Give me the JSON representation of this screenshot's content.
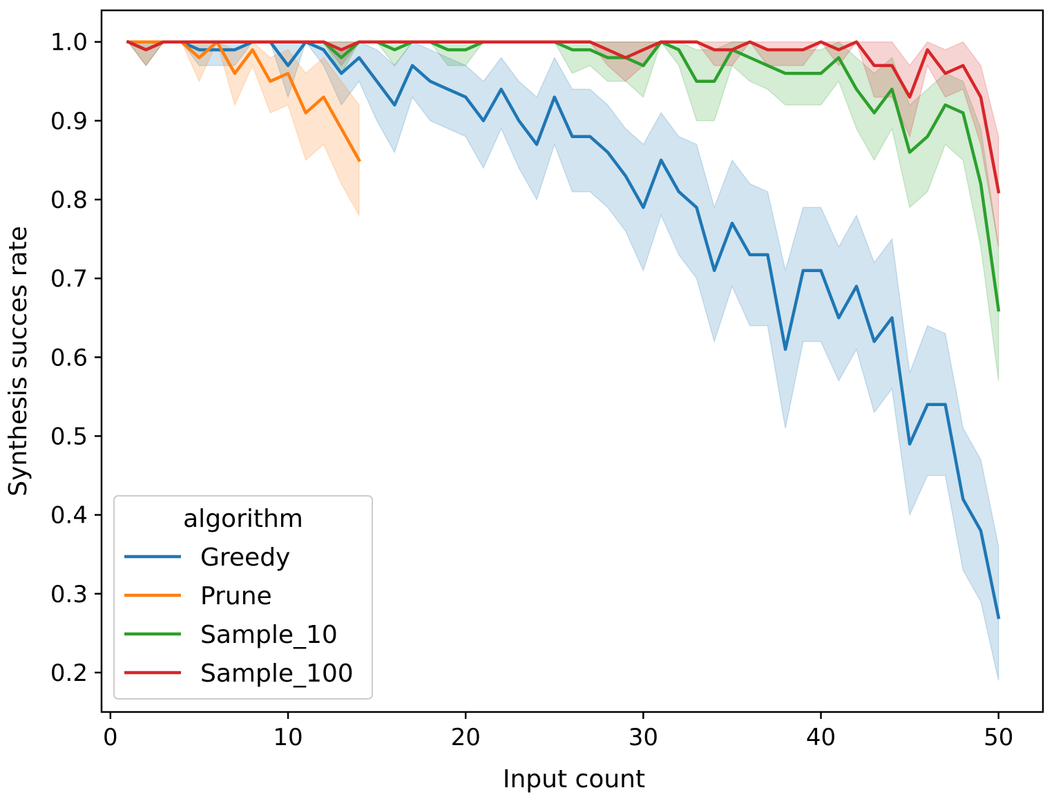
{
  "chart_data": {
    "type": "line",
    "title": "",
    "xlabel": "Input count",
    "ylabel": "Synthesis succes rate",
    "xlim": [
      -0.5,
      52.5
    ],
    "ylim": [
      0.15,
      1.04
    ],
    "xticks": [
      0,
      10,
      20,
      30,
      40,
      50
    ],
    "xtick_labels": [
      "0",
      "10",
      "20",
      "30",
      "40",
      "50"
    ],
    "yticks": [
      0.2,
      0.3,
      0.4,
      0.5,
      0.6,
      0.7,
      0.8,
      0.9,
      1.0
    ],
    "ytick_labels": [
      "0.2",
      "0.3",
      "0.4",
      "0.5",
      "0.6",
      "0.7",
      "0.8",
      "0.9",
      "1.0"
    ],
    "grid": false,
    "legend": {
      "title": "algorithm",
      "placement": "lower-left"
    },
    "series": [
      {
        "name": "Greedy",
        "color": "#1f77b4",
        "x": [
          1,
          2,
          3,
          4,
          5,
          6,
          7,
          8,
          9,
          10,
          11,
          12,
          13,
          14,
          15,
          16,
          17,
          18,
          19,
          20,
          21,
          22,
          23,
          24,
          25,
          26,
          27,
          28,
          29,
          30,
          31,
          32,
          33,
          34,
          35,
          36,
          37,
          38,
          39,
          40,
          41,
          42,
          43,
          44,
          45,
          46,
          47,
          48,
          49,
          50
        ],
        "values": [
          1.0,
          1.0,
          1.0,
          1.0,
          0.99,
          0.99,
          0.99,
          1.0,
          1.0,
          0.97,
          1.0,
          0.99,
          0.96,
          0.98,
          0.95,
          0.92,
          0.97,
          0.95,
          0.94,
          0.93,
          0.9,
          0.94,
          0.9,
          0.87,
          0.93,
          0.88,
          0.88,
          0.86,
          0.83,
          0.79,
          0.85,
          0.81,
          0.79,
          0.71,
          0.77,
          0.73,
          0.73,
          0.61,
          0.71,
          0.71,
          0.65,
          0.69,
          0.62,
          0.65,
          0.49,
          0.54,
          0.54,
          0.42,
          0.38,
          0.27
        ],
        "lower": [
          1.0,
          1.0,
          1.0,
          1.0,
          0.97,
          0.97,
          0.97,
          1.0,
          1.0,
          0.93,
          1.0,
          0.97,
          0.92,
          0.95,
          0.9,
          0.86,
          0.93,
          0.9,
          0.89,
          0.88,
          0.84,
          0.89,
          0.84,
          0.8,
          0.87,
          0.81,
          0.81,
          0.79,
          0.76,
          0.71,
          0.78,
          0.73,
          0.7,
          0.62,
          0.69,
          0.64,
          0.64,
          0.51,
          0.62,
          0.62,
          0.57,
          0.61,
          0.53,
          0.56,
          0.4,
          0.45,
          0.45,
          0.33,
          0.29,
          0.19
        ],
        "upper": [
          1.0,
          1.0,
          1.0,
          1.0,
          1.0,
          1.0,
          1.0,
          1.0,
          1.0,
          1.0,
          1.0,
          1.0,
          0.99,
          1.0,
          0.99,
          0.97,
          1.0,
          0.99,
          0.98,
          0.97,
          0.95,
          0.98,
          0.95,
          0.93,
          0.98,
          0.94,
          0.94,
          0.92,
          0.89,
          0.87,
          0.91,
          0.88,
          0.87,
          0.79,
          0.85,
          0.82,
          0.81,
          0.71,
          0.79,
          0.79,
          0.74,
          0.78,
          0.72,
          0.75,
          0.58,
          0.64,
          0.63,
          0.51,
          0.47,
          0.36
        ]
      },
      {
        "name": "Prune",
        "color": "#ff7f0e",
        "x": [
          1,
          2,
          3,
          4,
          5,
          6,
          7,
          8,
          9,
          10,
          11,
          12,
          13,
          14
        ],
        "values": [
          1.0,
          1.0,
          1.0,
          1.0,
          0.98,
          1.0,
          0.96,
          0.99,
          0.95,
          0.96,
          0.91,
          0.93,
          0.89,
          0.85
        ],
        "lower": [
          1.0,
          1.0,
          1.0,
          1.0,
          0.95,
          1.0,
          0.92,
          0.97,
          0.91,
          0.92,
          0.85,
          0.87,
          0.82,
          0.78
        ],
        "upper": [
          1.0,
          1.0,
          1.0,
          1.0,
          1.0,
          1.0,
          0.99,
          1.0,
          0.98,
          0.99,
          0.96,
          0.98,
          0.95,
          0.92
        ]
      },
      {
        "name": "Sample_10",
        "color": "#2ca02c",
        "x": [
          1,
          2,
          3,
          4,
          5,
          6,
          7,
          8,
          9,
          10,
          11,
          12,
          13,
          14,
          15,
          16,
          17,
          18,
          19,
          20,
          21,
          22,
          23,
          24,
          25,
          26,
          27,
          28,
          29,
          30,
          31,
          32,
          33,
          34,
          35,
          36,
          37,
          38,
          39,
          40,
          41,
          42,
          43,
          44,
          45,
          46,
          47,
          48,
          49,
          50
        ],
        "values": [
          1.0,
          0.99,
          1.0,
          1.0,
          1.0,
          1.0,
          1.0,
          1.0,
          1.0,
          1.0,
          1.0,
          1.0,
          0.98,
          1.0,
          1.0,
          0.99,
          1.0,
          1.0,
          0.99,
          0.99,
          1.0,
          1.0,
          1.0,
          1.0,
          1.0,
          0.99,
          0.99,
          0.98,
          0.98,
          0.97,
          1.0,
          0.99,
          0.95,
          0.95,
          0.99,
          0.98,
          0.97,
          0.96,
          0.96,
          0.96,
          0.98,
          0.94,
          0.91,
          0.94,
          0.86,
          0.88,
          0.92,
          0.91,
          0.82,
          0.66
        ],
        "lower": [
          1.0,
          0.97,
          1.0,
          1.0,
          1.0,
          1.0,
          1.0,
          1.0,
          1.0,
          1.0,
          1.0,
          1.0,
          0.96,
          1.0,
          1.0,
          0.97,
          1.0,
          1.0,
          0.97,
          0.97,
          1.0,
          1.0,
          1.0,
          1.0,
          1.0,
          0.96,
          0.97,
          0.95,
          0.95,
          0.93,
          1.0,
          0.97,
          0.9,
          0.9,
          0.97,
          0.95,
          0.94,
          0.92,
          0.92,
          0.92,
          0.95,
          0.89,
          0.85,
          0.89,
          0.79,
          0.81,
          0.87,
          0.85,
          0.74,
          0.57
        ],
        "upper": [
          1.0,
          1.0,
          1.0,
          1.0,
          1.0,
          1.0,
          1.0,
          1.0,
          1.0,
          1.0,
          1.0,
          1.0,
          1.0,
          1.0,
          1.0,
          1.0,
          1.0,
          1.0,
          1.0,
          1.0,
          1.0,
          1.0,
          1.0,
          1.0,
          1.0,
          1.0,
          1.0,
          1.0,
          1.0,
          1.0,
          1.0,
          1.0,
          0.99,
          0.99,
          1.0,
          1.0,
          0.99,
          0.99,
          0.99,
          0.99,
          1.0,
          0.98,
          0.96,
          0.98,
          0.92,
          0.94,
          0.96,
          0.95,
          0.89,
          0.74
        ]
      },
      {
        "name": "Sample_100",
        "color": "#d62728",
        "x": [
          1,
          2,
          3,
          4,
          5,
          6,
          7,
          8,
          9,
          10,
          11,
          12,
          13,
          14,
          15,
          16,
          17,
          18,
          19,
          20,
          21,
          22,
          23,
          24,
          25,
          26,
          27,
          28,
          29,
          30,
          31,
          32,
          33,
          34,
          35,
          36,
          37,
          38,
          39,
          40,
          41,
          42,
          43,
          44,
          45,
          46,
          47,
          48,
          49,
          50
        ],
        "values": [
          1.0,
          0.99,
          1.0,
          1.0,
          1.0,
          1.0,
          1.0,
          1.0,
          1.0,
          1.0,
          1.0,
          1.0,
          0.99,
          1.0,
          1.0,
          1.0,
          1.0,
          1.0,
          1.0,
          1.0,
          1.0,
          1.0,
          1.0,
          1.0,
          1.0,
          1.0,
          1.0,
          0.99,
          0.98,
          0.99,
          1.0,
          1.0,
          1.0,
          0.99,
          0.99,
          1.0,
          0.99,
          0.99,
          0.99,
          1.0,
          0.99,
          1.0,
          0.97,
          0.97,
          0.93,
          0.99,
          0.96,
          0.97,
          0.93,
          0.81
        ],
        "lower": [
          1.0,
          0.97,
          1.0,
          1.0,
          1.0,
          1.0,
          1.0,
          1.0,
          1.0,
          1.0,
          1.0,
          1.0,
          0.97,
          1.0,
          1.0,
          1.0,
          1.0,
          1.0,
          1.0,
          1.0,
          1.0,
          1.0,
          1.0,
          1.0,
          1.0,
          1.0,
          1.0,
          0.97,
          0.95,
          0.97,
          1.0,
          1.0,
          1.0,
          0.97,
          0.97,
          1.0,
          0.97,
          0.97,
          0.97,
          1.0,
          0.97,
          1.0,
          0.93,
          0.93,
          0.88,
          0.97,
          0.93,
          0.94,
          0.87,
          0.74
        ],
        "upper": [
          1.0,
          1.0,
          1.0,
          1.0,
          1.0,
          1.0,
          1.0,
          1.0,
          1.0,
          1.0,
          1.0,
          1.0,
          1.0,
          1.0,
          1.0,
          1.0,
          1.0,
          1.0,
          1.0,
          1.0,
          1.0,
          1.0,
          1.0,
          1.0,
          1.0,
          1.0,
          1.0,
          1.0,
          1.0,
          1.0,
          1.0,
          1.0,
          1.0,
          1.0,
          1.0,
          1.0,
          1.0,
          1.0,
          1.0,
          1.0,
          1.0,
          1.0,
          1.0,
          1.0,
          0.97,
          1.0,
          0.99,
          1.0,
          0.97,
          0.88
        ]
      }
    ]
  }
}
